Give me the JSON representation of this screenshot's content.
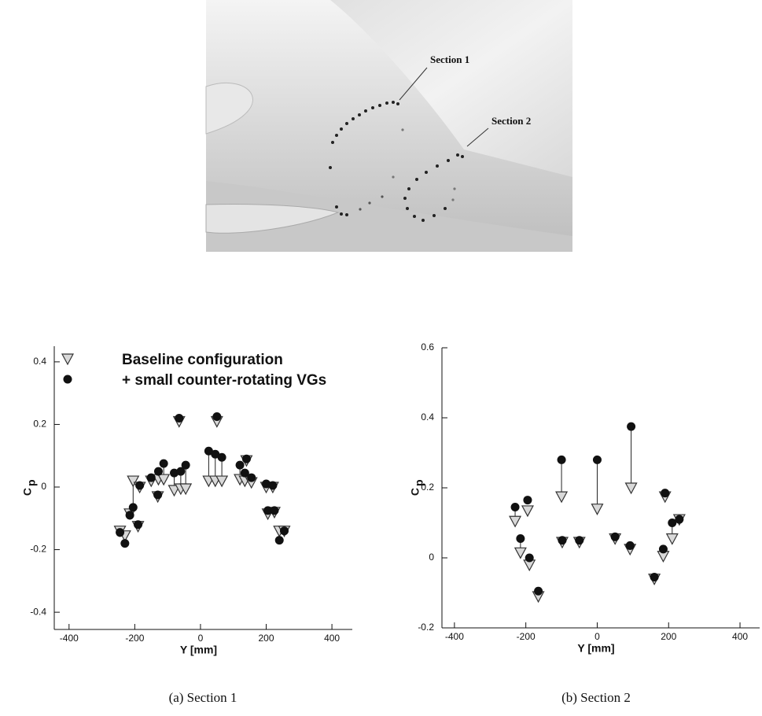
{
  "figure": {
    "labels": [
      "Section 1",
      "Section 2"
    ]
  },
  "chart_data": [
    {
      "type": "scatter",
      "xlabel": "Y [mm]",
      "ylabel": "C",
      "ylabel_sub": "p",
      "xlim": [
        -445,
        462
      ],
      "ylim": [
        -0.455,
        0.45
      ],
      "xticks": [
        -400,
        -200,
        0,
        200,
        400
      ],
      "yticks": [
        -0.4,
        -0.2,
        0,
        0.2,
        0.4
      ],
      "legend": "upper left",
      "x": [
        -245,
        -230,
        -215,
        -205,
        -190,
        -185,
        -150,
        -130,
        -128,
        -112,
        -80,
        -65,
        -60,
        -45,
        25,
        45,
        50,
        65,
        120,
        135,
        140,
        155,
        200,
        205,
        220,
        225,
        240,
        255
      ],
      "series": [
        {
          "name": "Baseline configuration",
          "marker": "triangle",
          "color": "#333333",
          "values": [
            -0.14,
            -0.155,
            -0.085,
            0.02,
            -0.125,
            0.0,
            0.02,
            -0.03,
            0.025,
            0.025,
            -0.01,
            0.21,
            -0.005,
            -0.005,
            0.02,
            0.02,
            0.21,
            0.02,
            0.025,
            0.02,
            0.085,
            0.015,
            0.0,
            -0.085,
            0.0,
            -0.08,
            -0.14,
            -0.14
          ]
        },
        {
          "name": "+ small counter-rotating VGs",
          "marker": "circle",
          "color": "#111111",
          "values": [
            -0.145,
            -0.18,
            -0.09,
            -0.065,
            -0.12,
            0.005,
            0.03,
            -0.025,
            0.05,
            0.075,
            0.045,
            0.22,
            0.05,
            0.07,
            0.115,
            0.105,
            0.225,
            0.095,
            0.07,
            0.045,
            0.09,
            0.03,
            0.01,
            -0.075,
            0.005,
            -0.075,
            -0.17,
            -0.14
          ]
        }
      ]
    },
    {
      "type": "scatter",
      "xlabel": "Y [mm]",
      "ylabel": "C",
      "ylabel_sub": "p",
      "xlim": [
        -435,
        455
      ],
      "ylim": [
        -0.2,
        0.6
      ],
      "xticks": [
        -400,
        -200,
        0,
        200,
        400
      ],
      "yticks": [
        -0.2,
        0,
        0.2,
        0.4,
        0.6
      ],
      "legend": "none",
      "x": [
        -230,
        -215,
        -195,
        -190,
        -165,
        -100,
        -98,
        -50,
        0,
        50,
        95,
        92,
        160,
        185,
        190,
        210,
        230
      ],
      "series": [
        {
          "marker": "triangle",
          "color": "#333333",
          "values": [
            0.105,
            0.015,
            0.135,
            -0.02,
            -0.11,
            0.175,
            0.045,
            0.045,
            0.14,
            0.055,
            0.2,
            0.025,
            -0.06,
            0.005,
            0.175,
            0.055,
            0.11
          ]
        },
        {
          "marker": "circle",
          "color": "#111111",
          "values": [
            0.145,
            0.055,
            0.165,
            0.0,
            -0.095,
            0.28,
            0.05,
            0.05,
            0.28,
            0.06,
            0.375,
            0.035,
            -0.055,
            0.025,
            0.185,
            0.1,
            0.11
          ]
        }
      ]
    }
  ],
  "captions": [
    "(a) Section 1",
    "(b) Section 2"
  ]
}
